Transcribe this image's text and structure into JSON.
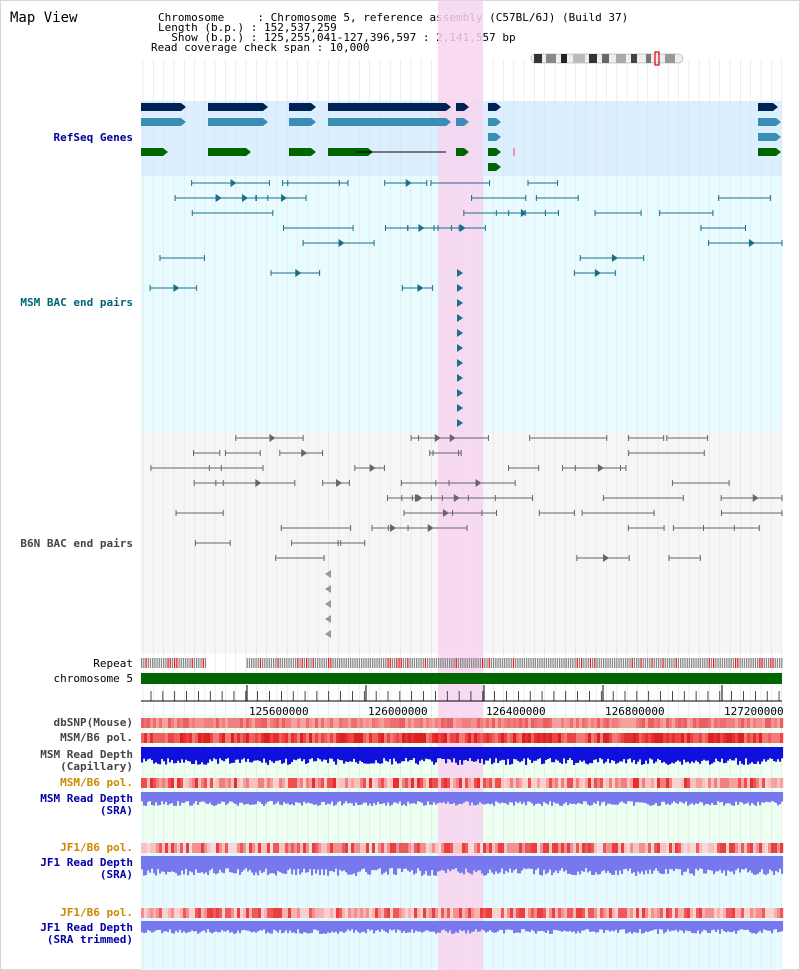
{
  "view_title": "Map View",
  "header": {
    "line1": "Chromosome     : Chromosome 5, reference assembly (C57BL/6J) (Build 37)",
    "line2": "Length (b.p.) : 152,537,259",
    "line3": "  Show (b.p.) : 125,255,041-127,396,597 : 2,141,557 bp",
    "line4": "Read coverage check span : 10,000"
  },
  "tracks": {
    "refseq": "RefSeq Genes",
    "msm_bac": "MSM BAC end pairs",
    "b6n_bac": "B6N BAC end pairs",
    "repeat": "Repeat",
    "chromosome": "chromosome 5",
    "dbsnp": "dbSNP(Mouse)",
    "msm_b6_pol_1": "MSM/B6 pol.",
    "msm_read_depth_cap_1": "MSM Read Depth",
    "msm_read_depth_cap_2": "(Capillary)",
    "msm_b6_pol_2": "MSM/B6 pol.",
    "msm_read_depth_sra_1": "MSM Read Depth",
    "msm_read_depth_sra_2": "(SRA)",
    "jf1_b6_pol_1": "JF1/B6 pol.",
    "jf1_read_depth_sra_1": "JF1 Read Depth",
    "jf1_read_depth_sra_2": "(SRA)",
    "jf1_b6_pol_2": "JF1/B6 pol.",
    "jf1_read_depth_trim_1": "JF1 Read Depth",
    "jf1_read_depth_trim_2": "(SRA trimmed)"
  },
  "axis": {
    "ticks": [
      "125600000",
      "126000000",
      "126400000",
      "126800000",
      "127200000"
    ]
  },
  "colors": {
    "refseq_label": "#000099",
    "msm_label": "#006677",
    "b6n_label": "#444444",
    "gene_dark": "#002255",
    "gene_mid": "#3a8db5",
    "gene_green": "#006600",
    "msm_feature": "#1a6e8a",
    "b6n_feature": "#666666",
    "highlight": "#f7d4f0",
    "chromosome_bar": "#006600",
    "depth_blue": "#1010dd",
    "depth_lavender": "#7777ee",
    "orange_label": "#cc8800",
    "blue_label": "#0000aa"
  }
}
